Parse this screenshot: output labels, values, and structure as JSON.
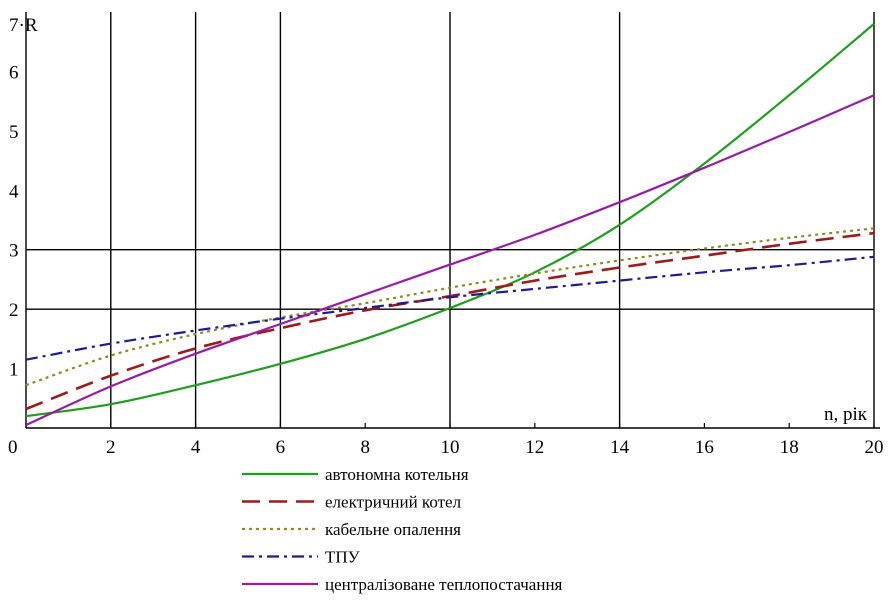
{
  "chart_data": {
    "type": "line",
    "title": "",
    "xlabel": "n, рік",
    "ylabel": "7·R",
    "xlim": [
      0,
      20
    ],
    "ylim": [
      0,
      7
    ],
    "x_ticks": [
      0,
      2,
      4,
      6,
      8,
      10,
      12,
      14,
      16,
      18,
      20
    ],
    "x_tick_labels": [
      "0",
      "2",
      "4",
      "6",
      "8",
      "10",
      "12",
      "14",
      "16",
      "18",
      "20"
    ],
    "y_ticks": [
      1,
      2,
      3,
      4,
      5,
      6
    ],
    "y_tick_labels": [
      "1",
      "2",
      "3",
      "4",
      "5",
      "6"
    ],
    "vertical_grid": [
      2,
      4,
      6,
      10,
      14,
      20
    ],
    "horizontal_grid": [
      2,
      3
    ],
    "legend_position": "bottom",
    "series": [
      {
        "name": "автономна котельня",
        "color": "#1aa01a",
        "dash": "solid",
        "x": [
          0,
          2,
          4,
          6,
          8,
          10,
          12,
          14,
          16,
          18,
          20
        ],
        "y": [
          0.2,
          0.4,
          0.72,
          1.08,
          1.5,
          2.02,
          2.62,
          3.42,
          4.45,
          5.6,
          6.8
        ]
      },
      {
        "name": "електричний котел",
        "color": "#a01818",
        "dash": "long-dash",
        "x": [
          0,
          2,
          4,
          6,
          8,
          10,
          12,
          14,
          16,
          18,
          20
        ],
        "y": [
          0.32,
          0.88,
          1.34,
          1.68,
          1.98,
          2.22,
          2.48,
          2.7,
          2.9,
          3.1,
          3.28
        ]
      },
      {
        "name": "кабельне опалення",
        "color": "#8c8c20",
        "dash": "dotted",
        "x": [
          0,
          2,
          4,
          6,
          8,
          10,
          12,
          14,
          16,
          18,
          20
        ],
        "y": [
          0.72,
          1.22,
          1.58,
          1.86,
          2.1,
          2.36,
          2.6,
          2.82,
          3.02,
          3.2,
          3.36
        ]
      },
      {
        "name": "ТПУ",
        "color": "#1a1a9a",
        "dash": "dash-dot",
        "x": [
          0,
          2,
          4,
          6,
          8,
          10,
          12,
          14,
          16,
          18,
          20
        ],
        "y": [
          1.15,
          1.42,
          1.64,
          1.84,
          2.02,
          2.2,
          2.34,
          2.48,
          2.62,
          2.74,
          2.88
        ]
      },
      {
        "name": "централізоване теплопостачання",
        "color": "#9a1aa8",
        "dash": "solid",
        "x": [
          0,
          2,
          4,
          6,
          8,
          10,
          12,
          14,
          16,
          18,
          20
        ],
        "y": [
          0.05,
          0.7,
          1.25,
          1.75,
          2.25,
          2.75,
          3.25,
          3.8,
          4.38,
          4.98,
          5.6
        ]
      }
    ]
  }
}
